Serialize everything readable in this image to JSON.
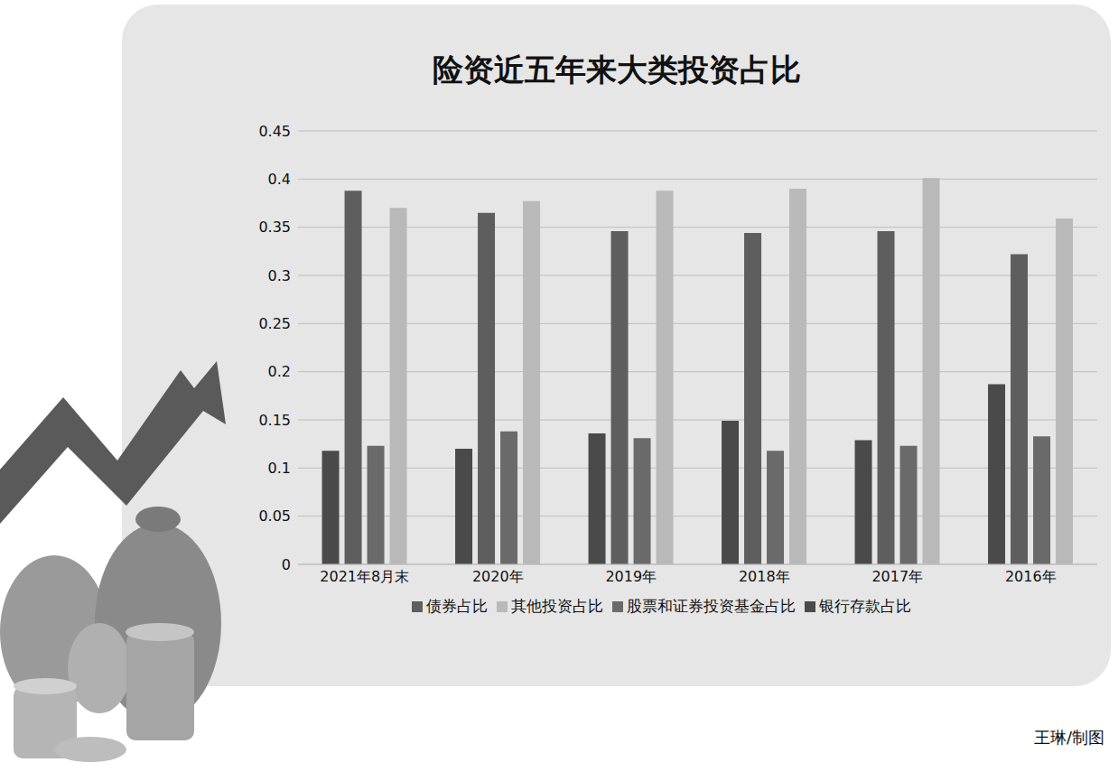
{
  "chart_data": {
    "type": "bar",
    "title": "险资近五年来大类投资占比",
    "categories": [
      "2021年8月末",
      "2020年",
      "2019年",
      "2018年",
      "2017年",
      "2016年"
    ],
    "series": [
      {
        "name": "银行存款占比",
        "color": "#4a4a4a",
        "values": [
          0.118,
          0.12,
          0.136,
          0.149,
          0.129,
          0.187
        ]
      },
      {
        "name": "债券占比",
        "color": "#5e5e5e",
        "values": [
          0.388,
          0.365,
          0.346,
          0.344,
          0.346,
          0.322
        ]
      },
      {
        "name": "股票和证券投资基金占比",
        "color": "#6a6a6a",
        "values": [
          0.123,
          0.138,
          0.131,
          0.118,
          0.123,
          0.133
        ]
      },
      {
        "name": "其他投资占比",
        "color": "#b9b9b9",
        "values": [
          0.37,
          0.377,
          0.388,
          0.39,
          0.401,
          0.359
        ]
      }
    ],
    "ylim": [
      0,
      0.45
    ],
    "yticks": [
      0,
      0.05,
      0.1,
      0.15,
      0.2,
      0.25,
      0.3,
      0.35,
      0.4,
      0.45
    ],
    "grid": true,
    "legend": "bottom",
    "annotations": [
      "王琳/制图"
    ]
  }
}
